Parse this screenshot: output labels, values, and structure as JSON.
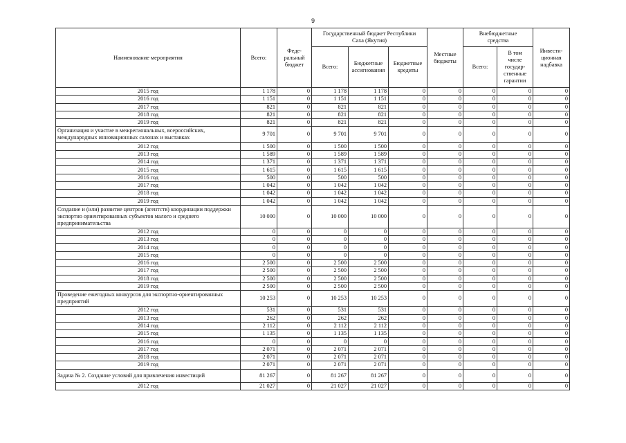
{
  "page_number": "9",
  "header": {
    "name": "Наименование мероприятия",
    "total": "Всего:",
    "federal": "Феде-\nральный\nбюджет",
    "state_budget": "Государственный бюджет Республики\nСаха (Якутия)",
    "state_total": "Всего:",
    "state_allocations": "Бюджетные\nассигнования",
    "state_credits": "Бюджетные\nкредиты",
    "local": "Местные\nбюджеты",
    "extra_budget": "Внебюджетные\nсредства",
    "extra_total": "Всего:",
    "extra_guarantees": "В том\nчисле\nгосудар-\nственные\nгарантии",
    "investment": "Инвести-\nционная\nнадбавка"
  },
  "table": {
    "rows": [
      [
        "2015 год",
        "1 178",
        "0",
        "1 178",
        "1 178",
        "0",
        "0",
        "0",
        "0",
        "0"
      ],
      [
        "2016 год",
        "1 151",
        "0",
        "1 151",
        "1 151",
        "0",
        "0",
        "0",
        "0",
        "0"
      ],
      [
        "2017 год",
        "821",
        "0",
        "821",
        "821",
        "0",
        "0",
        "0",
        "0",
        "0"
      ],
      [
        "2018 год",
        "821",
        "0",
        "821",
        "821",
        "0",
        "0",
        "0",
        "0",
        "0"
      ],
      [
        "2019 год",
        "821",
        "0",
        "821",
        "821",
        "0",
        "0",
        "0",
        "0",
        "0"
      ],
      [
        "Организация и участие в межрегиональных, всероссийских, международных инновационных салонах и выставках",
        "9 701",
        "0",
        "9 701",
        "9 701",
        "0",
        "0",
        "0",
        "0",
        "0"
      ],
      [
        "2012 год",
        "1 500",
        "0",
        "1 500",
        "1 500",
        "0",
        "0",
        "0",
        "0",
        "0"
      ],
      [
        "2013 год",
        "1 589",
        "0",
        "1 589",
        "1 589",
        "0",
        "0",
        "0",
        "0",
        "0"
      ],
      [
        "2014 год",
        "1 371",
        "0",
        "1 371",
        "1 371",
        "0",
        "0",
        "0",
        "0",
        "0"
      ],
      [
        "2015 год",
        "1 615",
        "0",
        "1 615",
        "1 615",
        "0",
        "0",
        "0",
        "0",
        "0"
      ],
      [
        "2016 год",
        "500",
        "0",
        "500",
        "500",
        "0",
        "0",
        "0",
        "0",
        "0"
      ],
      [
        "2017 год",
        "1 042",
        "0",
        "1 042",
        "1 042",
        "0",
        "0",
        "0",
        "0",
        "0"
      ],
      [
        "2018 год",
        "1 042",
        "0",
        "1 042",
        "1 042",
        "0",
        "0",
        "0",
        "0",
        "0"
      ],
      [
        "2019 год",
        "1 042",
        "0",
        "1 042",
        "1 042",
        "0",
        "0",
        "0",
        "0",
        "0"
      ],
      [
        "Создание и (или) развитие центров (агентств) координации поддержки экспортно ориентированных субъектов малого и среднего предпринимательства",
        "10 000",
        "0",
        "10 000",
        "10 000",
        "0",
        "0",
        "0",
        "0",
        "0"
      ],
      [
        "2012 год",
        "0",
        "0",
        "0",
        "0",
        "0",
        "0",
        "0",
        "0",
        "0"
      ],
      [
        "2013 год",
        "0",
        "0",
        "0",
        "0",
        "0",
        "0",
        "0",
        "0",
        "0"
      ],
      [
        "2014 год",
        "0",
        "0",
        "0",
        "0",
        "0",
        "0",
        "0",
        "0",
        "0"
      ],
      [
        "2015 год",
        "0",
        "0",
        "0",
        "0",
        "0",
        "0",
        "0",
        "0",
        "0"
      ],
      [
        "2016 год",
        "2 500",
        "0",
        "2 500",
        "2 500",
        "0",
        "0",
        "0",
        "0",
        "0"
      ],
      [
        "2017 год",
        "2 500",
        "0",
        "2 500",
        "2 500",
        "0",
        "0",
        "0",
        "0",
        "0"
      ],
      [
        "2018 год",
        "2 500",
        "0",
        "2 500",
        "2 500",
        "0",
        "0",
        "0",
        "0",
        "0"
      ],
      [
        "2019 год",
        "2 500",
        "0",
        "2 500",
        "2 500",
        "0",
        "0",
        "0",
        "0",
        "0"
      ],
      [
        "Проведение ежегодных конкурсов для экспортно-ориентированных предприятий",
        "10 253",
        "0",
        "10 253",
        "10 253",
        "0",
        "0",
        "0",
        "0",
        "0"
      ],
      [
        "2012 год",
        "531",
        "0",
        "531",
        "531",
        "0",
        "0",
        "0",
        "0",
        "0"
      ],
      [
        "2013 год",
        "262",
        "0",
        "262",
        "262",
        "0",
        "0",
        "0",
        "0",
        "0"
      ],
      [
        "2014 год",
        "2 112",
        "0",
        "2 112",
        "2 112",
        "0",
        "0",
        "0",
        "0",
        "0"
      ],
      [
        "2015 год",
        "1 135",
        "0",
        "1 135",
        "1 135",
        "0",
        "0",
        "0",
        "0",
        "0"
      ],
      [
        "2016 год",
        "0",
        "0",
        "0",
        "0",
        "0",
        "0",
        "0",
        "0",
        "0"
      ],
      [
        "2017 год",
        "2 071",
        "0",
        "2 071",
        "2 071",
        "0",
        "0",
        "0",
        "0",
        "0"
      ],
      [
        "2018 год",
        "2 071",
        "0",
        "2 071",
        "2 071",
        "0",
        "0",
        "0",
        "0",
        "0"
      ],
      [
        "2019 год",
        "2 071",
        "0",
        "2 071",
        "2 071",
        "0",
        "0",
        "0",
        "0",
        "0"
      ],
      [
        "Задача № 2. Создание условий для привлечения инвестиций",
        "81 267",
        "0",
        "81 267",
        "81 267",
        "0",
        "0",
        "0",
        "0",
        "0"
      ],
      [
        "2012 год",
        "21 027",
        "0",
        "21 027",
        "21 027",
        "0",
        "0",
        "0",
        "0",
        "0"
      ]
    ]
  }
}
